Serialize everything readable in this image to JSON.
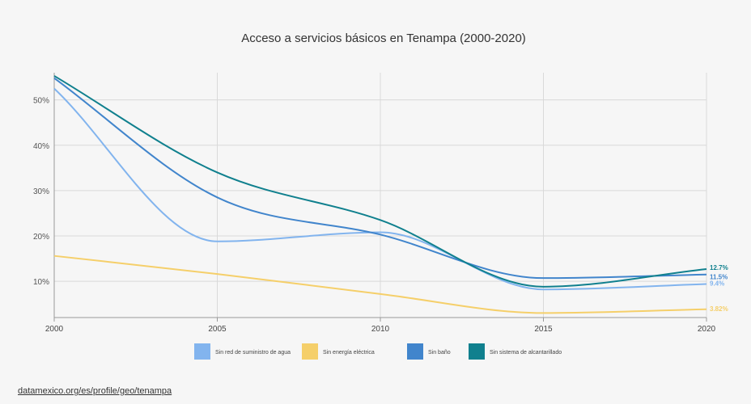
{
  "source_link": "datamexico.org/es/profile/geo/tenampa",
  "chart_data": {
    "type": "line",
    "title": "Acceso a servicios básicos en Tenampa (2000-2020)",
    "xlabel": "",
    "ylabel": "",
    "x": [
      2000,
      2005,
      2010,
      2015,
      2020
    ],
    "x_ticks": [
      "2000",
      "2005",
      "2010",
      "2015",
      "2020"
    ],
    "xlim": [
      2000,
      2020
    ],
    "ylim": [
      2,
      56
    ],
    "y_ticks": [
      10,
      20,
      30,
      40,
      50
    ],
    "y_tick_labels": [
      "10%",
      "20%",
      "30%",
      "40%",
      "50%"
    ],
    "grid": true,
    "legend_position": "bottom",
    "series": [
      {
        "name": "Sin red de suministro de agua",
        "color": "#82b4ee",
        "values": [
          52.5,
          18.8,
          20.8,
          8.2,
          9.4
        ],
        "end_label": "9.4%"
      },
      {
        "name": "Sin energía eléctrica",
        "color": "#f5cf6a",
        "values": [
          15.6,
          11.6,
          7.2,
          3.0,
          3.82
        ],
        "end_label": "3.82%"
      },
      {
        "name": "Sin baño",
        "color": "#4185cc",
        "values": [
          54.8,
          28.5,
          20.3,
          10.7,
          11.5
        ],
        "end_label": "11.5%"
      },
      {
        "name": "Sin sistema de alcantarillado",
        "color": "#10808e",
        "values": [
          55.3,
          34.0,
          23.5,
          8.8,
          12.7
        ],
        "end_label": "12.7%"
      }
    ]
  }
}
